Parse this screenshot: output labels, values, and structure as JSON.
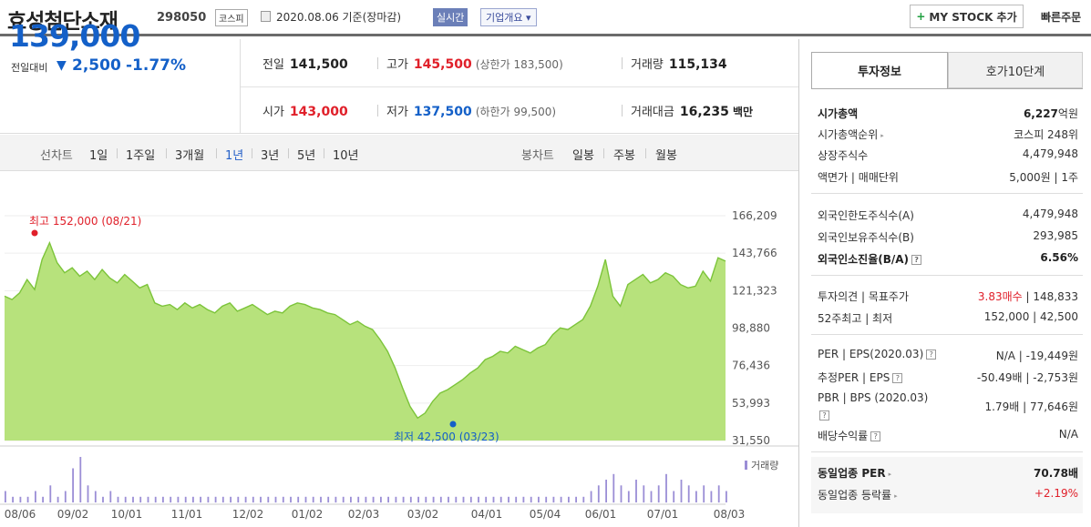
{
  "header": {
    "title": "효성첨단소재",
    "code": "298050",
    "market": "코스피",
    "date": "2020.08.06 기준(장마감)",
    "realtime": "실시간",
    "overview": "기업개요 ▾",
    "mystock": "MY STOCK 추가",
    "quick_order": "빠른주문"
  },
  "price": {
    "current": "139,000",
    "change_label": "전일대비",
    "change_value": "2,500",
    "change_pct": "-1.77%",
    "direction": "down"
  },
  "stats": {
    "prev_close_label": "전일",
    "prev_close": "141,500",
    "high_label": "고가",
    "high": "145,500",
    "upper_limit": "(상한가 183,500)",
    "volume_label": "거래량",
    "volume": "115,134",
    "open_label": "시가",
    "open": "143,000",
    "low_label": "저가",
    "low": "137,500",
    "lower_limit": "(하한가 99,500)",
    "amount_label": "거래대금",
    "amount": "16,235",
    "amount_unit": "백만"
  },
  "period": {
    "line_label": "선차트",
    "line_options": [
      "1일",
      "1주일",
      "3개월",
      "1년",
      "3년",
      "5년",
      "10년"
    ],
    "selected": "1년",
    "candle_label": "봉차트",
    "candle_options": [
      "일봉",
      "주봉",
      "월봉"
    ]
  },
  "chart_data": {
    "type": "area",
    "y_ticks": [
      "166,209",
      "143,766",
      "121,323",
      "98,880",
      "76,436",
      "53,993",
      "31,550"
    ],
    "ylim": [
      31550,
      166209
    ],
    "x_ticks": [
      "08/06",
      "09/02",
      "10/01",
      "11/01",
      "12/02",
      "01/02",
      "02/03",
      "03/02",
      "04/01",
      "05/04",
      "06/01",
      "07/01",
      "08/03"
    ],
    "high_label": "최고 152,000 (08/21)",
    "low_label": "최저 42,500 (03/23)",
    "volume_label": "거래량",
    "values": [
      118,
      116,
      120,
      128,
      122,
      140,
      150,
      138,
      132,
      135,
      130,
      133,
      128,
      134,
      129,
      126,
      131,
      127,
      123,
      125,
      114,
      112,
      113,
      110,
      114,
      111,
      113,
      110,
      108,
      112,
      114,
      109,
      111,
      113,
      110,
      107,
      109,
      108,
      112,
      114,
      113,
      111,
      110,
      108,
      107,
      104,
      101,
      103,
      100,
      98,
      92,
      85,
      75,
      63,
      52,
      45,
      48,
      55,
      60,
      62,
      65,
      68,
      72,
      75,
      80,
      82,
      85,
      84,
      88,
      86,
      84,
      87,
      89,
      95,
      99,
      98,
      101,
      104,
      112,
      124,
      140,
      118,
      112,
      125,
      128,
      131,
      126,
      128,
      132,
      130,
      125,
      123,
      124,
      133,
      127,
      141,
      139
    ],
    "volume_bars": [
      2,
      1,
      1,
      1,
      2,
      1,
      3,
      1,
      2,
      6,
      8,
      3,
      2,
      1,
      2,
      1,
      1,
      1,
      1,
      1,
      1,
      1,
      1,
      1,
      1,
      1,
      1,
      1,
      1,
      1,
      1,
      1,
      1,
      1,
      1,
      1,
      1,
      1,
      1,
      1,
      1,
      1,
      1,
      1,
      1,
      1,
      1,
      1,
      1,
      1,
      1,
      1,
      1,
      1,
      1,
      1,
      1,
      1,
      1,
      1,
      1,
      1,
      1,
      1,
      1,
      1,
      1,
      1,
      1,
      1,
      1,
      1,
      1,
      1,
      1,
      1,
      1,
      1,
      2,
      3,
      4,
      5,
      3,
      2,
      4,
      3,
      2,
      3,
      5,
      2,
      4,
      3,
      2,
      3,
      2,
      3,
      2
    ]
  },
  "colors": {
    "up": "#e0202a",
    "down": "#1460c8",
    "chart_fill": "#b7e27c",
    "chart_line": "#7cc43a"
  },
  "invest": {
    "tab1": "투자정보",
    "tab2": "호가10단계",
    "market_cap_label": "시가총액",
    "market_cap_value": "6,227",
    "market_cap_unit": "억원",
    "cap_rank_label": "시가총액순위",
    "cap_rank": "코스피 248위",
    "shares_label": "상장주식수",
    "shares": "4,479,948",
    "par_label": "액면가 | 매매단위",
    "par": "5,000원 | 1주",
    "foreign_limit_label": "외국인한도주식수(A)",
    "foreign_limit": "4,479,948",
    "foreign_hold_label": "외국인보유주식수(B)",
    "foreign_hold": "293,985",
    "foreign_ratio_label": "외국인소진율(B/A)",
    "foreign_ratio": "6.56%",
    "opinion_label": "투자의견 | 목표주가",
    "opinion": "3.83매수",
    "target": "| 148,833",
    "w52_label": "52주최고 | 최저",
    "w52": "152,000 | 42,500",
    "per_label": "PER | EPS(2020.03)",
    "per": "N/A | -19,449원",
    "est_per_label": "추정PER | EPS",
    "est_per": "-50.49배 | -2,753원",
    "pbr_label": "PBR | BPS (2020.03)",
    "pbr": "1.79배 | 77,646원",
    "div_label": "배당수익률",
    "div": "N/A",
    "peer_per_label": "동일업종 PER",
    "peer_per": "70.78배",
    "peer_chg_label": "동일업종 등락률",
    "peer_chg": "+2.19%"
  }
}
